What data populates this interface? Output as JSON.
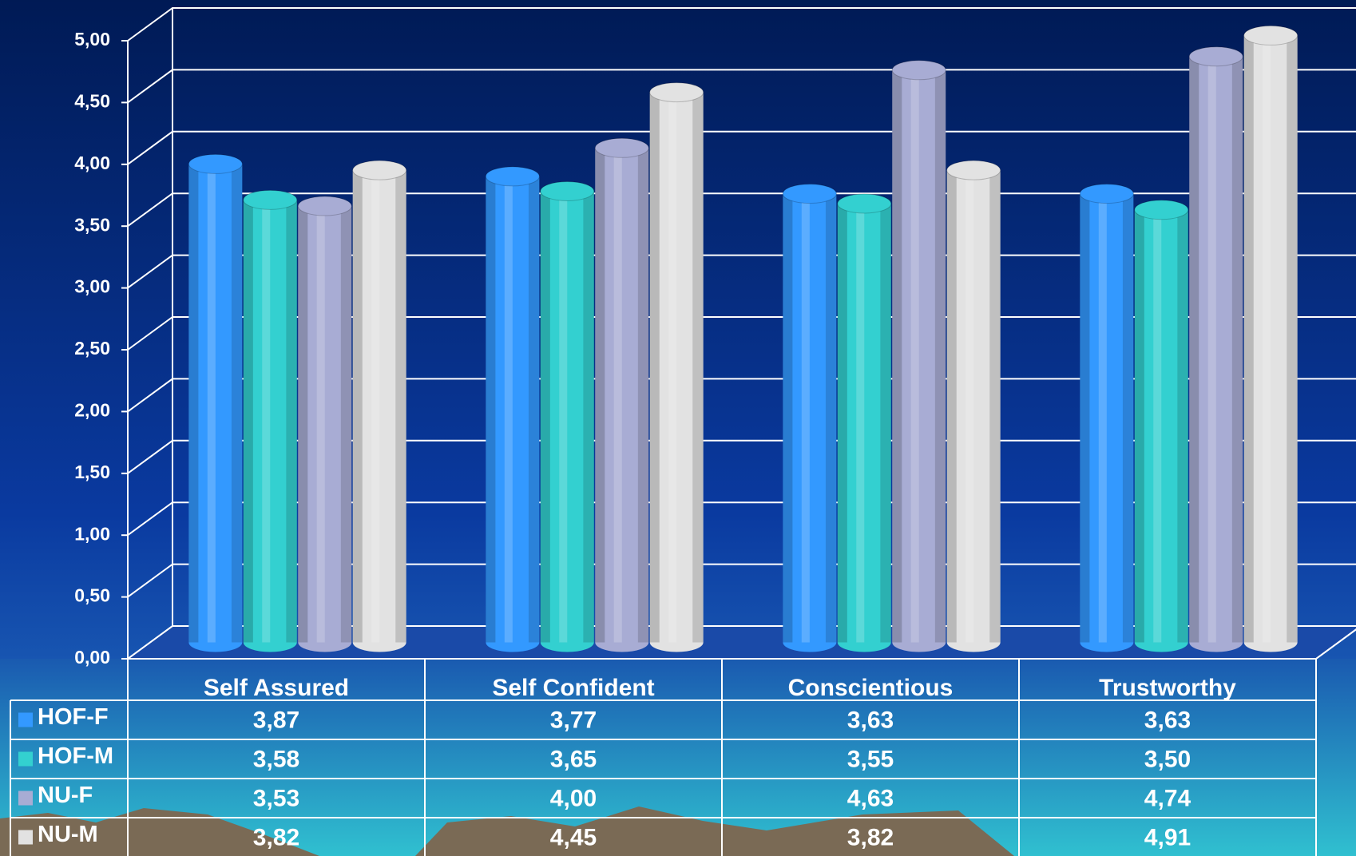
{
  "chart_data": {
    "type": "bar3d",
    "categories": [
      "Self Assured",
      "Self Confident",
      "Conscientious",
      "Trustworthy"
    ],
    "series": [
      {
        "name": "HOF-F",
        "color": "#3399ff",
        "values": [
          3.87,
          3.77,
          3.63,
          3.63
        ],
        "value_labels": [
          "3,87",
          "3,77",
          "3,63",
          "3,63"
        ]
      },
      {
        "name": "HOF-M",
        "color": "#33d0d0",
        "values": [
          3.58,
          3.65,
          3.55,
          3.5
        ],
        "value_labels": [
          "3,58",
          "3,65",
          "3,55",
          "3,50"
        ]
      },
      {
        "name": "NU-F",
        "color": "#a8acd4",
        "values": [
          3.53,
          4.0,
          4.63,
          4.74
        ],
        "value_labels": [
          "3,53",
          "4,00",
          "4,63",
          "4,74"
        ]
      },
      {
        "name": "NU-M",
        "color": "#e2e2e2",
        "values": [
          3.82,
          4.45,
          3.82,
          4.91
        ],
        "value_labels": [
          "3,82",
          "4,45",
          "3,82",
          "4,91"
        ]
      }
    ],
    "ylim": [
      0,
      5
    ],
    "yticks": [
      {
        "value": 0,
        "label": "0,00"
      },
      {
        "value": 0.5,
        "label": "0,50"
      },
      {
        "value": 1,
        "label": "1,00"
      },
      {
        "value": 1.5,
        "label": "1,50"
      },
      {
        "value": 2,
        "label": "2,00"
      },
      {
        "value": 2.5,
        "label": "2,50"
      },
      {
        "value": 3,
        "label": "3,00"
      },
      {
        "value": 3.5,
        "label": "3,50"
      },
      {
        "value": 4,
        "label": "4,00"
      },
      {
        "value": 4.5,
        "label": "4,50"
      },
      {
        "value": 5,
        "label": "5,00"
      }
    ],
    "grid": true
  }
}
